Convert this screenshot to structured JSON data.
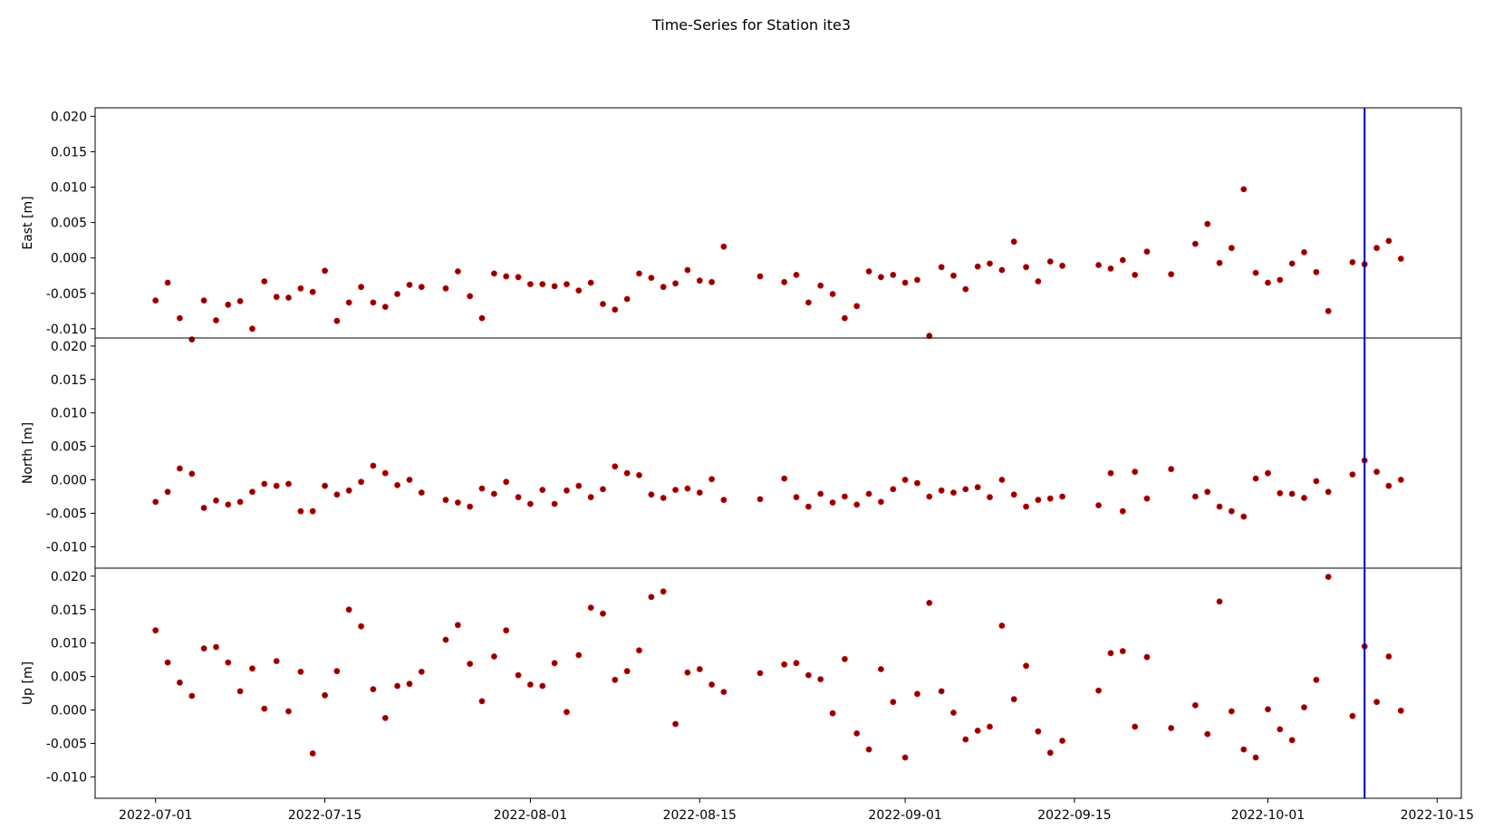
{
  "title": "Time-Series for Station ite3",
  "chart_data": {
    "type": "scatter",
    "title": "Time-Series for Station ite3",
    "shared_x": true,
    "xlim": [
      "2022-06-26",
      "2022-10-17"
    ],
    "x_ticks": [
      "2022-07-01",
      "2022-07-15",
      "2022-08-01",
      "2022-08-15",
      "2022-09-01",
      "2022-09-15",
      "2022-10-01",
      "2022-10-15"
    ],
    "marker_color": "#8b0000",
    "marker_edge_color": "#cc0000",
    "vline": {
      "date": "2022-10-09",
      "color": "#0000aa"
    },
    "grid": false,
    "dates": [
      "2022-07-01",
      "2022-07-02",
      "2022-07-03",
      "2022-07-04",
      "2022-07-05",
      "2022-07-06",
      "2022-07-07",
      "2022-07-08",
      "2022-07-09",
      "2022-07-10",
      "2022-07-11",
      "2022-07-12",
      "2022-07-13",
      "2022-07-14",
      "2022-07-15",
      "2022-07-16",
      "2022-07-17",
      "2022-07-18",
      "2022-07-19",
      "2022-07-20",
      "2022-07-21",
      "2022-07-22",
      "2022-07-23",
      "2022-07-25",
      "2022-07-26",
      "2022-07-27",
      "2022-07-28",
      "2022-07-29",
      "2022-07-30",
      "2022-07-31",
      "2022-08-01",
      "2022-08-02",
      "2022-08-03",
      "2022-08-04",
      "2022-08-05",
      "2022-08-06",
      "2022-08-07",
      "2022-08-08",
      "2022-08-09",
      "2022-08-10",
      "2022-08-11",
      "2022-08-12",
      "2022-08-13",
      "2022-08-14",
      "2022-08-15",
      "2022-08-16",
      "2022-08-17",
      "2022-08-20",
      "2022-08-22",
      "2022-08-23",
      "2022-08-24",
      "2022-08-25",
      "2022-08-26",
      "2022-08-27",
      "2022-08-28",
      "2022-08-29",
      "2022-08-30",
      "2022-08-31",
      "2022-09-01",
      "2022-09-02",
      "2022-09-03",
      "2022-09-04",
      "2022-09-05",
      "2022-09-06",
      "2022-09-07",
      "2022-09-08",
      "2022-09-09",
      "2022-09-10",
      "2022-09-11",
      "2022-09-12",
      "2022-09-13",
      "2022-09-14",
      "2022-09-17",
      "2022-09-18",
      "2022-09-19",
      "2022-09-20",
      "2022-09-21",
      "2022-09-23",
      "2022-09-25",
      "2022-09-26",
      "2022-09-27",
      "2022-09-28",
      "2022-09-29",
      "2022-09-30",
      "2022-10-01",
      "2022-10-02",
      "2022-10-03",
      "2022-10-04",
      "2022-10-05",
      "2022-10-06",
      "2022-10-08",
      "2022-10-09",
      "2022-10-10",
      "2022-10-11",
      "2022-10-12"
    ],
    "panels": [
      {
        "ylabel": "East [m]",
        "ylim": [
          -0.0113,
          0.0212
        ],
        "y_ticks": [
          "0.020",
          "0.015",
          "0.010",
          "0.005",
          "0.000",
          "-0.005",
          "-0.010"
        ],
        "y": [
          -0.006,
          -0.0035,
          -0.0085,
          -0.0115,
          -0.006,
          -0.0088,
          -0.0066,
          -0.0061,
          -0.01,
          -0.0033,
          -0.0055,
          -0.0056,
          -0.0043,
          -0.0048,
          -0.0018,
          -0.0089,
          -0.0063,
          -0.0041,
          -0.0063,
          -0.0069,
          -0.0051,
          -0.0038,
          -0.0041,
          -0.0043,
          -0.0019,
          -0.0054,
          -0.0085,
          -0.0022,
          -0.0026,
          -0.0027,
          -0.0037,
          -0.0037,
          -0.004,
          -0.0037,
          -0.0046,
          -0.0035,
          -0.0065,
          -0.0073,
          -0.0058,
          -0.0022,
          -0.0028,
          -0.0041,
          -0.0036,
          -0.0017,
          -0.0032,
          -0.0034,
          0.0016,
          -0.0026,
          -0.0034,
          -0.0024,
          -0.0063,
          -0.0039,
          -0.0051,
          -0.0085,
          -0.0068,
          -0.0019,
          -0.0027,
          -0.0024,
          -0.0035,
          -0.0031,
          -0.011,
          -0.0013,
          -0.0025,
          -0.0044,
          -0.0012,
          -0.0008,
          -0.0017,
          0.0023,
          -0.0013,
          -0.0033,
          -0.0005,
          -0.0011,
          -0.001,
          -0.0015,
          -0.0003,
          -0.0024,
          0.0009,
          -0.0023,
          0.002,
          0.0048,
          -0.0007,
          0.0014,
          0.0097,
          -0.0021,
          -0.0035,
          -0.0031,
          -0.0008,
          0.0008,
          -0.002,
          -0.0075,
          -0.0006,
          -0.0009,
          0.0014,
          0.0024,
          -0.0001
        ]
      },
      {
        "ylabel": "North [m]",
        "ylim": [
          -0.0132,
          0.0212
        ],
        "y_ticks": [
          "0.020",
          "0.015",
          "0.010",
          "0.005",
          "0.000",
          "-0.005",
          "-0.010"
        ],
        "y": [
          -0.0033,
          -0.0018,
          0.0017,
          0.0009,
          -0.0042,
          -0.0031,
          -0.0037,
          -0.0033,
          -0.0018,
          -0.0006,
          -0.0009,
          -0.0006,
          -0.0047,
          -0.0047,
          -0.0009,
          -0.0022,
          -0.0016,
          -0.0003,
          0.0021,
          0.001,
          -0.0008,
          0.0,
          -0.0019,
          -0.003,
          -0.0034,
          -0.004,
          -0.0013,
          -0.0021,
          -0.0003,
          -0.0026,
          -0.0036,
          -0.0015,
          -0.0036,
          -0.0016,
          -0.0009,
          -0.0026,
          -0.0014,
          0.002,
          0.001,
          0.0007,
          -0.0022,
          -0.0027,
          -0.0015,
          -0.0013,
          -0.0019,
          0.0001,
          -0.003,
          -0.0029,
          0.0002,
          -0.0026,
          -0.004,
          -0.0021,
          -0.0034,
          -0.0025,
          -0.0037,
          -0.0021,
          -0.0033,
          -0.0014,
          0.0,
          -0.0005,
          -0.0025,
          -0.0016,
          -0.0019,
          -0.0014,
          -0.0011,
          -0.0026,
          0.0,
          -0.0022,
          -0.004,
          -0.003,
          -0.0028,
          -0.0025,
          -0.0038,
          0.001,
          -0.0047,
          0.0012,
          -0.0028,
          0.0016,
          -0.0025,
          -0.0018,
          -0.004,
          -0.0047,
          -0.0055,
          0.0002,
          0.001,
          -0.002,
          -0.0021,
          -0.0027,
          -0.0002,
          -0.0018,
          0.0008,
          0.0029,
          0.0012,
          -0.0009,
          0.0
        ]
      },
      {
        "ylabel": "Up [m]",
        "ylim": [
          -0.0132,
          0.0212
        ],
        "y_ticks": [
          "0.020",
          "0.015",
          "0.010",
          "0.005",
          "0.000",
          "-0.005",
          "-0.010"
        ],
        "y": [
          0.0119,
          0.0071,
          0.0041,
          0.0021,
          0.0092,
          0.0094,
          0.0071,
          0.0028,
          0.0062,
          0.0002,
          0.0073,
          -0.0002,
          0.0057,
          -0.0065,
          0.0022,
          0.0058,
          0.015,
          0.0125,
          0.0031,
          -0.0012,
          0.0036,
          0.0039,
          0.0057,
          0.0105,
          0.0127,
          0.0069,
          0.0013,
          0.008,
          0.0119,
          0.0052,
          0.0038,
          0.0036,
          0.007,
          -0.0003,
          0.0082,
          0.0153,
          0.0144,
          0.0045,
          0.0058,
          0.0089,
          0.0169,
          0.0177,
          -0.0021,
          0.0056,
          0.0061,
          0.0038,
          0.0027,
          0.0055,
          0.0068,
          0.007,
          0.0052,
          0.0046,
          -0.0005,
          0.0076,
          -0.0035,
          -0.0059,
          0.0061,
          0.0012,
          -0.0071,
          0.0024,
          0.016,
          0.0028,
          -0.0004,
          -0.0044,
          -0.0031,
          -0.0025,
          0.0126,
          0.0016,
          0.0066,
          -0.0032,
          -0.0064,
          -0.0046,
          0.0029,
          0.0085,
          0.0088,
          -0.0025,
          0.0079,
          -0.0027,
          0.0007,
          -0.0036,
          0.0162,
          -0.0002,
          -0.0059,
          -0.0071,
          0.0001,
          -0.0029,
          -0.0045,
          0.0004,
          0.0045,
          0.0199,
          -0.0009,
          0.0095,
          0.0012,
          0.008,
          -0.0001
        ]
      }
    ]
  }
}
